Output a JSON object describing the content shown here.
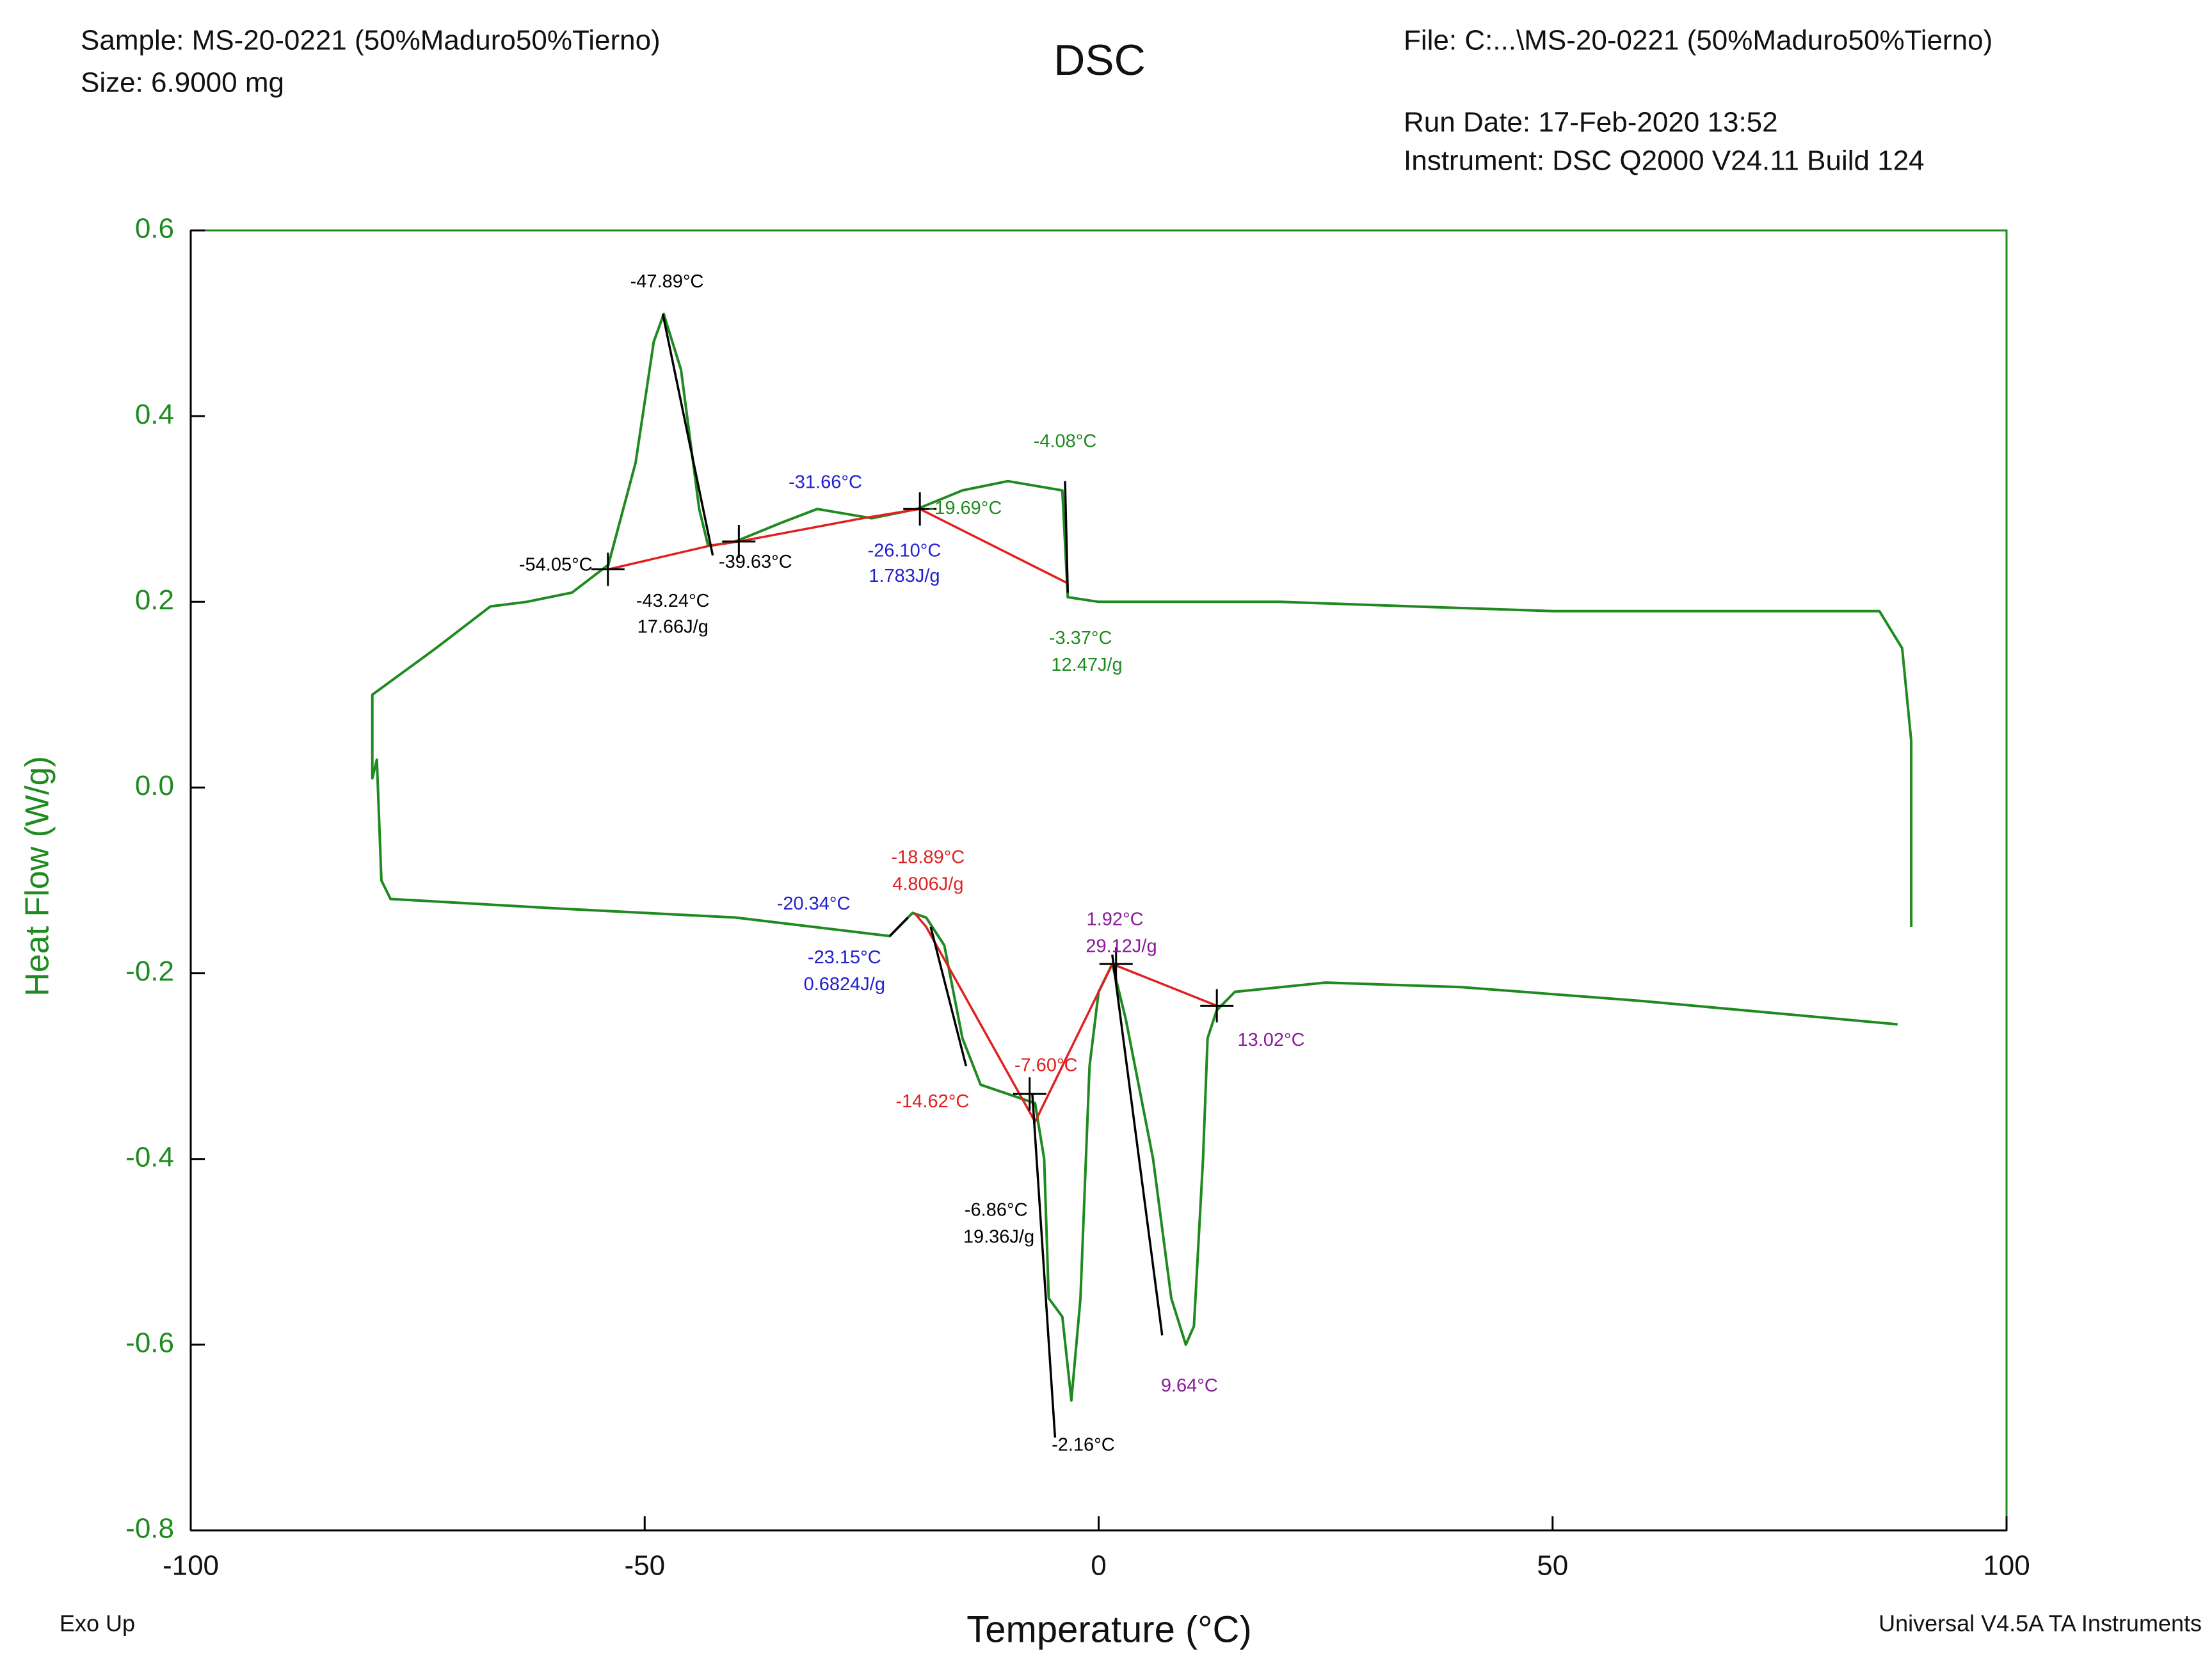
{
  "chart_data": {
    "type": "line",
    "title": "DSC",
    "sample": "Sample: MS-20-0221 (50%Maduro50%Tierno)",
    "size": "Size:  6.9000 mg",
    "file": "File: C:...\\MS-20-0221 (50%Maduro50%Tierno)",
    "run_date": "Run Date: 17-Feb-2020 13:52",
    "instrument": "Instrument: DSC Q2000 V24.11 Build 124",
    "exo_label": "Exo Up",
    "software": "Universal V4.5A TA Instruments",
    "x_label": "Temperature (°C)",
    "y_label": "Heat Flow (W/g)",
    "xlim": [
      -100,
      100
    ],
    "xticks": [
      -100,
      -50,
      0,
      50,
      100
    ],
    "ylim": [
      -0.8,
      0.6
    ],
    "yticks": [
      0.6,
      0.4,
      0.2,
      {
        "value": 0,
        "label": "0.0"
      },
      -0.2,
      -0.4,
      -0.6,
      -0.8
    ],
    "series": [
      {
        "color": "#1f8a1f",
        "x": [
          89.5,
          89.5,
          88.5,
          86,
          50,
          20,
          0,
          -3.4,
          -4,
          -10,
          -15,
          -20,
          -25,
          -31,
          -35,
          -40,
          -43,
          -44,
          -46,
          -47.9,
          -49,
          -51,
          -54,
          -58,
          -63,
          -67,
          -73,
          -80,
          -80,
          -79.5,
          -79,
          -78,
          -60,
          -40,
          -23,
          -22,
          -20.5,
          -19,
          -17,
          -15,
          -13,
          -10,
          -7,
          -6,
          -5.5,
          -4,
          -3,
          -2,
          -1,
          0,
          1.5,
          3,
          6,
          8,
          9.6,
          10.5,
          11.5,
          12,
          13,
          15,
          25,
          40,
          60,
          88
        ],
        "values": [
          -0.15,
          0.05,
          0.15,
          0.19,
          0.19,
          0.2,
          0.2,
          0.205,
          0.32,
          0.33,
          0.32,
          0.3,
          0.29,
          0.3,
          0.285,
          0.265,
          0.26,
          0.3,
          0.45,
          0.51,
          0.48,
          0.35,
          0.24,
          0.21,
          0.2,
          0.195,
          0.15,
          0.1,
          0.01,
          0.03,
          -0.1,
          -0.12,
          -0.13,
          -0.14,
          -0.16,
          -0.15,
          -0.135,
          -0.14,
          -0.17,
          -0.27,
          -0.32,
          -0.33,
          -0.34,
          -0.4,
          -0.55,
          -0.57,
          -0.66,
          -0.55,
          -0.3,
          -0.22,
          -0.19,
          -0.25,
          -0.4,
          -0.55,
          -0.6,
          -0.58,
          -0.4,
          -0.27,
          -0.24,
          -0.22,
          -0.21,
          -0.215,
          -0.23,
          -0.255
        ]
      }
    ],
    "overlays": [
      {
        "color": "#e02020",
        "x": [
          -54,
          -43,
          -39.6,
          -26,
          -19.7,
          -3.4
        ],
        "values": [
          0.235,
          0.26,
          0.265,
          0.29,
          0.3,
          0.22
        ]
      },
      {
        "color": "#000000",
        "x": [
          -48,
          -42.5
        ],
        "values": [
          0.51,
          0.25
        ]
      },
      {
        "color": "#000000",
        "x": [
          -3.7,
          -3.4
        ],
        "values": [
          0.33,
          0.21
        ]
      },
      {
        "color": "#e02020",
        "x": [
          -20.3,
          -19,
          -7,
          1.5,
          13
        ],
        "values": [
          -0.135,
          -0.15,
          -0.36,
          -0.19,
          -0.235
        ]
      },
      {
        "color": "#000000",
        "x": [
          -23,
          -21
        ],
        "values": [
          -0.16,
          -0.14
        ]
      },
      {
        "color": "#000000",
        "x": [
          -18.5,
          -14.6
        ],
        "values": [
          -0.15,
          -0.3
        ]
      },
      {
        "color": "#000000",
        "x": [
          -7.3,
          -4.8
        ],
        "values": [
          -0.33,
          -0.7
        ]
      },
      {
        "color": "#000000",
        "x": [
          1.5,
          7
        ],
        "values": [
          -0.18,
          -0.59
        ]
      }
    ],
    "markers": {
      "x": [
        -54.05,
        -39.63,
        -19.69,
        -7.6,
        1.92,
        13.02
      ],
      "values": [
        0.235,
        0.265,
        0.3,
        -0.33,
        -0.19,
        -0.235
      ]
    },
    "annotations": [
      {
        "text": "-47.89°C",
        "x": -47.55,
        "y": 0.544,
        "color": "#000000"
      },
      {
        "text": "-54.05°C",
        "x": -59.8,
        "y": 0.239,
        "color": "#000000"
      },
      {
        "text": "-43.24°C",
        "x": -46.9,
        "y": 0.2,
        "color": "#000000"
      },
      {
        "text": "17.66J/g",
        "x": -46.9,
        "y": 0.172,
        "color": "#000000"
      },
      {
        "text": "-39.63°C",
        "x": -37.8,
        "y": 0.242,
        "color": "#000000"
      },
      {
        "text": "-31.66°C",
        "x": -30.1,
        "y": 0.328,
        "color": "#2020d0"
      },
      {
        "text": "-26.10°C",
        "x": -21.4,
        "y": 0.254,
        "color": "#2020d0"
      },
      {
        "text": "1.783J/g",
        "x": -21.4,
        "y": 0.227,
        "color": "#2020d0"
      },
      {
        "text": "-19.69°C",
        "x": -14.7,
        "y": 0.3,
        "color": "#1f8a1f"
      },
      {
        "text": "-4.08°C",
        "x": -3.7,
        "y": 0.372,
        "color": "#1f8a1f"
      },
      {
        "text": "-3.37°C",
        "x": -2,
        "y": 0.16,
        "color": "#1f8a1f"
      },
      {
        "text": "12.47J/g",
        "x": -1.3,
        "y": 0.131,
        "color": "#1f8a1f"
      },
      {
        "text": "-18.89°C",
        "x": -18.8,
        "y": -0.076,
        "color": "#e02020"
      },
      {
        "text": "4.806J/g",
        "x": -18.8,
        "y": -0.105,
        "color": "#e02020"
      },
      {
        "text": "-20.34°C",
        "x": -31.4,
        "y": -0.126,
        "color": "#2020d0"
      },
      {
        "text": "-23.15°C",
        "x": -28,
        "y": -0.184,
        "color": "#2020d0"
      },
      {
        "text": "0.6824J/g",
        "x": -28,
        "y": -0.213,
        "color": "#2020d0"
      },
      {
        "text": "-14.62°C",
        "x": -18.3,
        "y": -0.339,
        "color": "#e02020"
      },
      {
        "text": "-7.60°C",
        "x": -5.8,
        "y": -0.3,
        "color": "#e02020"
      },
      {
        "text": "1.92°C",
        "x": 1.8,
        "y": -0.143,
        "color": "#8a1a9a"
      },
      {
        "text": "29.12J/g",
        "x": 2.5,
        "y": -0.172,
        "color": "#8a1a9a"
      },
      {
        "text": "13.02°C",
        "x": 19,
        "y": -0.273,
        "color": "#8a1a9a"
      },
      {
        "text": "-6.86°C",
        "x": -11.3,
        "y": -0.456,
        "color": "#000000"
      },
      {
        "text": "19.36J/g",
        "x": -11,
        "y": -0.485,
        "color": "#000000"
      },
      {
        "text": "9.64°C",
        "x": 10,
        "y": -0.645,
        "color": "#8a1a9a"
      },
      {
        "text": "-2.16°C",
        "x": -1.7,
        "y": -0.709,
        "color": "#000000"
      }
    ]
  }
}
